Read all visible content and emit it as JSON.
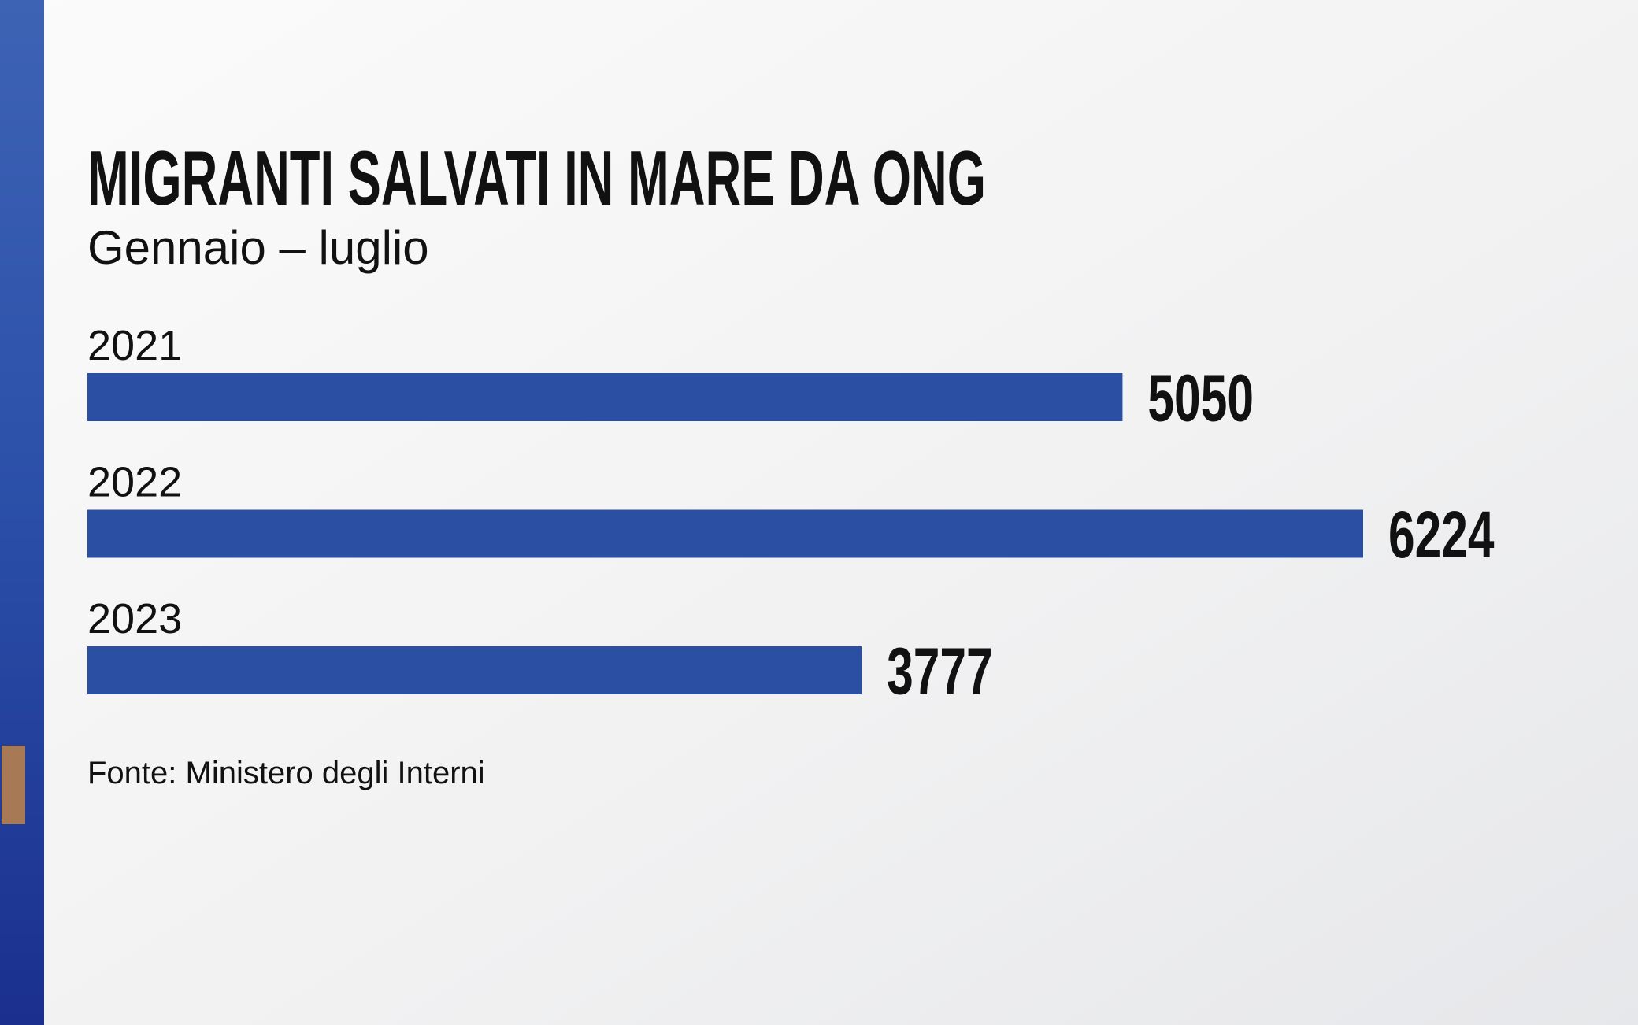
{
  "chart_data": {
    "type": "hbar",
    "title": "MIGRANTI SALVATI IN MARE DA ONG",
    "subtitle": "Gennaio – luglio",
    "categories": [
      "2021",
      "2022",
      "2023"
    ],
    "values": [
      5050,
      6224,
      3777
    ],
    "color": "#2b50a3",
    "source": "Fonte: Ministero degli Interni"
  }
}
